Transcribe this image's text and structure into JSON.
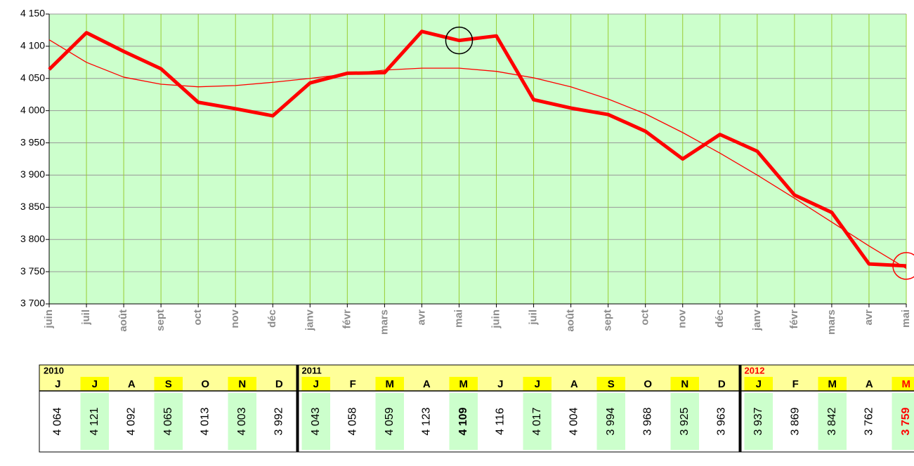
{
  "chart_data": {
    "type": "line",
    "categories": [
      "juin",
      "juil",
      "août",
      "sept",
      "oct",
      "nov",
      "déc",
      "janv",
      "févr",
      "mars",
      "avr",
      "mai",
      "juin",
      "juil",
      "août",
      "sept",
      "oct",
      "nov",
      "déc",
      "janv",
      "févr",
      "mars",
      "avr",
      "mai"
    ],
    "values": [
      4064,
      4121,
      4092,
      4065,
      4013,
      4003,
      3992,
      4043,
      4058,
      4059,
      4123,
      4109,
      4116,
      4017,
      4004,
      3994,
      3968,
      3925,
      3963,
      3937,
      3869,
      3842,
      3762,
      3759
    ],
    "value_labels": [
      "4 064",
      "4 121",
      "4 092",
      "4 065",
      "4 013",
      "4 003",
      "3 992",
      "4 043",
      "4 058",
      "4 059",
      "4 123",
      "4 109",
      "4 116",
      "4 017",
      "4 004",
      "3 994",
      "3 968",
      "3 925",
      "3 963",
      "3 937",
      "3 869",
      "3 842",
      "3 762",
      "3 759"
    ],
    "trend_values": [
      4110,
      4075,
      4052,
      4041,
      4037,
      4039,
      4044,
      4050,
      4057,
      4063,
      4066,
      4066,
      4061,
      4051,
      4037,
      4018,
      3995,
      3966,
      3934,
      3900,
      3864,
      3827,
      3790,
      3755
    ],
    "color": "#ff0000",
    "ylim": [
      3700,
      4150
    ],
    "yticks": [
      {
        "value": 3700,
        "label": "3 700"
      },
      {
        "value": 3750,
        "label": "3 750"
      },
      {
        "value": 3800,
        "label": "3 800"
      },
      {
        "value": 3850,
        "label": "3 850"
      },
      {
        "value": 3900,
        "label": "3 900"
      },
      {
        "value": 3950,
        "label": "3 950"
      },
      {
        "value": 4000,
        "label": "4 000"
      },
      {
        "value": 4050,
        "label": "4 050"
      },
      {
        "value": 4100,
        "label": "4 100"
      },
      {
        "value": 4150,
        "label": "4 150"
      }
    ],
    "grid": true
  },
  "table": {
    "groups": [
      {
        "year": "2010",
        "months": [
          "J",
          "J",
          "A",
          "S",
          "O",
          "N",
          "D"
        ]
      },
      {
        "year": "2011",
        "months": [
          "J",
          "F",
          "M",
          "A",
          "M",
          "J",
          "J",
          "A",
          "S",
          "O",
          "N",
          "D"
        ]
      },
      {
        "year": "2012",
        "months": [
          "J",
          "F",
          "M",
          "A",
          "M"
        ]
      }
    ]
  }
}
